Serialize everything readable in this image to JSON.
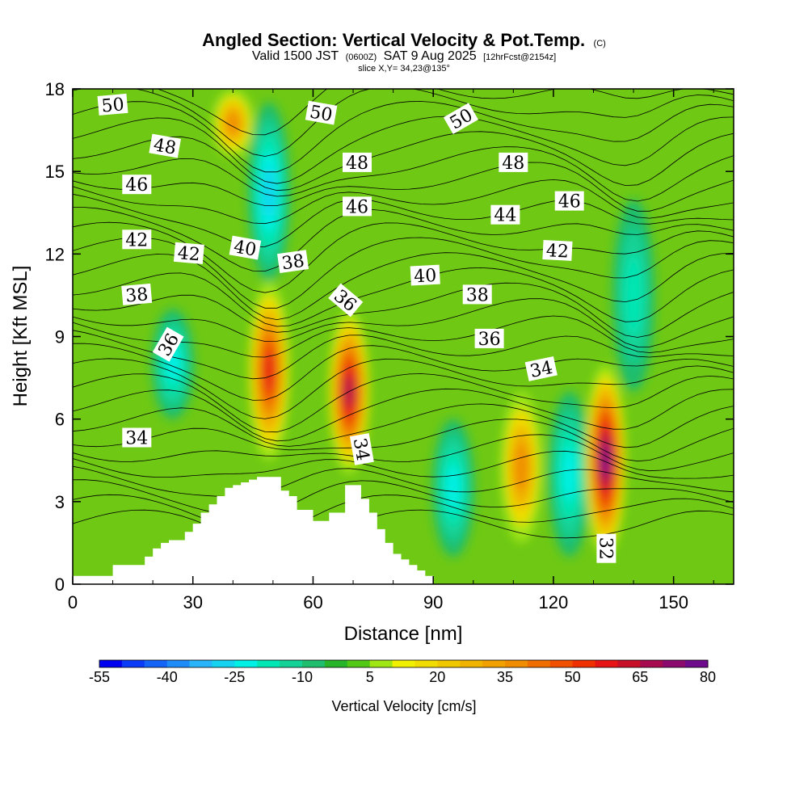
{
  "title": {
    "main": "Angled Section: Vertical Velocity & Pot.Temp.",
    "main_suffix": "(C)",
    "valid_prefix": "Valid 1500 JST",
    "valid_utc": "(0600Z)",
    "valid_date": "SAT 9 Aug 2025",
    "forecast": "[12hrFcst@2154z]",
    "slice": "slice X,Y= 34,23@135°"
  },
  "chart_data": {
    "type": "heatmap",
    "xlabel": "Distance [nm]",
    "ylabel": "Height [Kft MSL]",
    "xlim": [
      0,
      165
    ],
    "ylim": [
      0,
      18
    ],
    "x_ticks": [
      0,
      30,
      60,
      90,
      120,
      150
    ],
    "x_tick_labels": [
      "0",
      "30",
      "60",
      "90",
      "120",
      "150"
    ],
    "y_ticks": [
      0,
      3,
      6,
      9,
      12,
      15,
      18
    ],
    "y_tick_labels": [
      "0",
      "3",
      "6",
      "9",
      "12",
      "15",
      "18"
    ],
    "colorbar": {
      "title": "Vertical Velocity [cm/s]",
      "labels": [
        "-55",
        "-40",
        "-25",
        "-10",
        "5",
        "20",
        "35",
        "50",
        "65",
        "80"
      ],
      "levels": [
        -55,
        -50,
        -45,
        -40,
        -35,
        -30,
        -25,
        -20,
        -15,
        -10,
        -5,
        0,
        5,
        10,
        15,
        20,
        25,
        30,
        35,
        40,
        45,
        50,
        55,
        60,
        65,
        70,
        75,
        80
      ],
      "colors": [
        "#0000f0",
        "#0a3cf8",
        "#1464f8",
        "#1e8cf8",
        "#28b4f8",
        "#14d2f0",
        "#00f0e6",
        "#00e6b4",
        "#14d296",
        "#1ebe6e",
        "#28b428",
        "#50c814",
        "#a0e614",
        "#f0f000",
        "#f0dc00",
        "#f0c800",
        "#f0b400",
        "#f0a000",
        "#f08c00",
        "#f06e00",
        "#f05000",
        "#f03000",
        "#e61414",
        "#c80f28",
        "#a80a50",
        "#8c0a6e",
        "#6e0a8c"
      ],
      "background_color": "#6ec814"
    },
    "updrafts": [
      {
        "x": 49,
        "z_min": 4.5,
        "z_max": 11,
        "peak": 55
      },
      {
        "x": 69,
        "z_min": 4.0,
        "z_max": 10,
        "peak": 65
      },
      {
        "x": 112,
        "z_min": 1.5,
        "z_max": 7,
        "peak": 35
      },
      {
        "x": 133,
        "z_min": 1.0,
        "z_max": 8,
        "peak": 80
      },
      {
        "x": 40,
        "z_min": 15.5,
        "z_max": 18,
        "peak": 35
      }
    ],
    "downdrafts": [
      {
        "x": 49,
        "z_min": 11,
        "z_max": 17.5,
        "peak": -30
      },
      {
        "x": 25,
        "z_min": 6,
        "z_max": 10,
        "peak": -25
      },
      {
        "x": 95,
        "z_min": 1,
        "z_max": 6,
        "peak": -25
      },
      {
        "x": 124,
        "z_min": 1,
        "z_max": 7,
        "peak": -25
      },
      {
        "x": 140,
        "z_min": 7,
        "z_max": 14,
        "peak": -20
      }
    ],
    "terrain": {
      "x": [
        0,
        10,
        10,
        16,
        18,
        20,
        22,
        24,
        26,
        28,
        30,
        32,
        34,
        36,
        38,
        40,
        42,
        44,
        46,
        50,
        52,
        54,
        56,
        58,
        60,
        62,
        64,
        66,
        68,
        70,
        72,
        74,
        76,
        78,
        80,
        82,
        84,
        86,
        88,
        90
      ],
      "z": [
        0.3,
        0.3,
        0.7,
        0.7,
        1.0,
        1.3,
        1.5,
        1.6,
        1.6,
        1.9,
        2.2,
        2.6,
        2.9,
        3.2,
        3.5,
        3.6,
        3.7,
        3.8,
        3.9,
        3.9,
        3.4,
        3.2,
        2.7,
        2.7,
        2.3,
        2.3,
        2.6,
        2.6,
        3.6,
        3.6,
        3.1,
        2.6,
        2.0,
        1.5,
        1.1,
        0.9,
        0.7,
        0.5,
        0.3,
        0.3
      ]
    },
    "contour_labels": [
      {
        "text": "50",
        "x": 10,
        "z": 17.4,
        "angle": 5
      },
      {
        "text": "48",
        "x": 23,
        "z": 15.9,
        "angle": -10
      },
      {
        "text": "46",
        "x": 16,
        "z": 14.5,
        "angle": 0
      },
      {
        "text": "42",
        "x": 16,
        "z": 12.5,
        "angle": 0
      },
      {
        "text": "42",
        "x": 29,
        "z": 12.0,
        "angle": -5
      },
      {
        "text": "40",
        "x": 43,
        "z": 12.2,
        "angle": -10
      },
      {
        "text": "38",
        "x": 55,
        "z": 11.7,
        "angle": 8
      },
      {
        "text": "38",
        "x": 16,
        "z": 10.5,
        "angle": 5
      },
      {
        "text": "36",
        "x": 24,
        "z": 8.7,
        "angle": 60
      },
      {
        "text": "36",
        "x": 68,
        "z": 10.3,
        "angle": -40
      },
      {
        "text": "34",
        "x": 16,
        "z": 5.3,
        "angle": 0
      },
      {
        "text": "34",
        "x": 72,
        "z": 4.9,
        "angle": -80
      },
      {
        "text": "50",
        "x": 62,
        "z": 17.1,
        "angle": -10
      },
      {
        "text": "48",
        "x": 71,
        "z": 15.3,
        "angle": 0
      },
      {
        "text": "46",
        "x": 71,
        "z": 13.7,
        "angle": 0
      },
      {
        "text": "50",
        "x": 97,
        "z": 16.9,
        "angle": 30
      },
      {
        "text": "48",
        "x": 110,
        "z": 15.3,
        "angle": 0
      },
      {
        "text": "46",
        "x": 124,
        "z": 13.9,
        "angle": 0
      },
      {
        "text": "44",
        "x": 108,
        "z": 13.4,
        "angle": 0
      },
      {
        "text": "42",
        "x": 121,
        "z": 12.1,
        "angle": -3
      },
      {
        "text": "40",
        "x": 88,
        "z": 11.2,
        "angle": 3
      },
      {
        "text": "38",
        "x": 101,
        "z": 10.5,
        "angle": 0
      },
      {
        "text": "36",
        "x": 104,
        "z": 8.9,
        "angle": 0
      },
      {
        "text": "34",
        "x": 117,
        "z": 7.8,
        "angle": 12
      },
      {
        "text": "32",
        "x": 133,
        "z": 1.3,
        "angle": -90
      }
    ]
  }
}
